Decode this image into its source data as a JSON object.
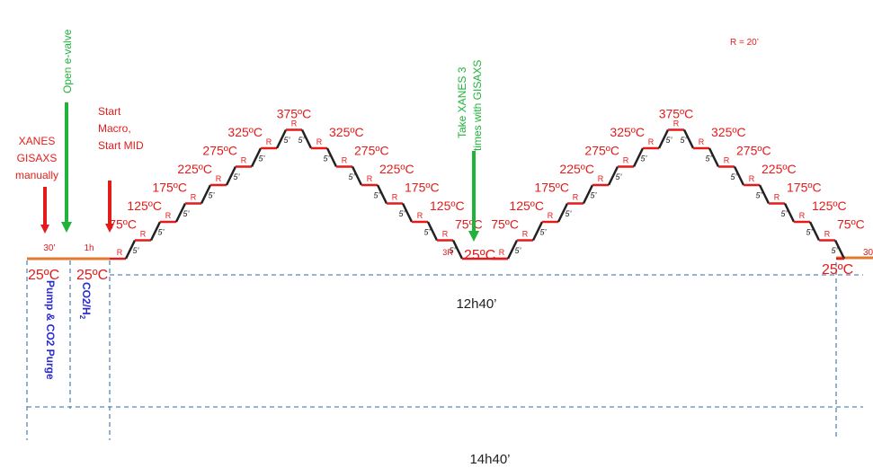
{
  "labels": {
    "xanes_manual": [
      "XANES",
      "GISAXS",
      "manually"
    ],
    "open_valve": "Open e-valve",
    "start_macro": [
      "Start",
      "Macro,",
      "Start MID"
    ],
    "take_xanes": [
      "Take XANES 3",
      "times with GISAXS"
    ],
    "r_note": "R = 20’",
    "dur_30": "30’",
    "dur_1h": "1h",
    "dur_30_right": "30",
    "base_temp": "25ºC",
    "pump_purge": "Pump & CO2 Purge",
    "co2h2_main": "CO2/H",
    "co2h2_sub": "2",
    "total_ramp": "12h40’",
    "total_all": "14h40’",
    "step_r": "R",
    "step_ramp": "5’",
    "mid_3r": "3R"
  },
  "ramp1_up": [
    "75ºC",
    "125ºC",
    "175ºC",
    "225ºC",
    "275ºC",
    "325ºC"
  ],
  "peak1": "375ºC",
  "ramp1_down": [
    "325ºC",
    "275ºC",
    "225ºC",
    "175ºC",
    "125ºC",
    "75ºC"
  ],
  "mid_temp": "25ºC",
  "ramp2_up": [
    "75ºC",
    "125ºC",
    "175ºC",
    "225ºC",
    "275ºC",
    "325ºC"
  ],
  "peak2": "375ºC",
  "ramp2_down": [
    "325ºC",
    "275ºC",
    "225ºC",
    "175ºC",
    "125ºC",
    "75ºC"
  ],
  "end_temp": "25ºC",
  "colors": {
    "red": "#e31b1b",
    "green": "#1fb33a",
    "orange": "#e07b2e",
    "blue": "#2b2bd6",
    "dash": "#5b86b8",
    "black": "#222222"
  }
}
